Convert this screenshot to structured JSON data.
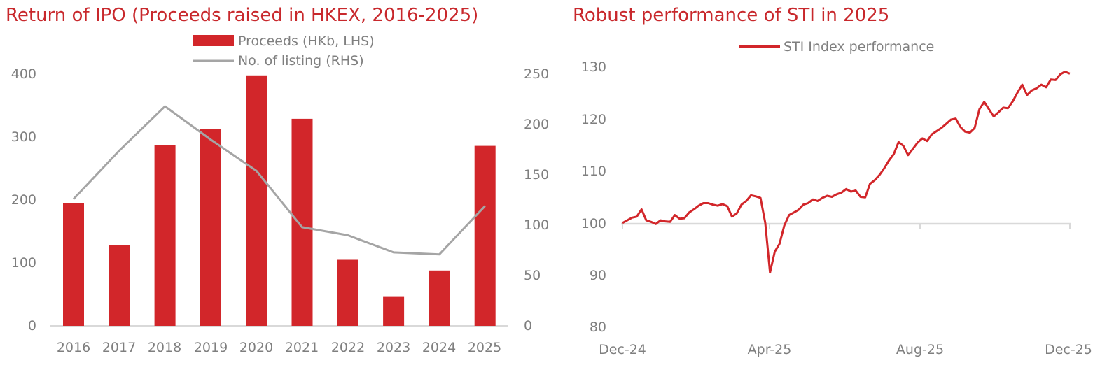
{
  "colors": {
    "accent": "#d2262a",
    "line_gray": "#a5a5a5",
    "text_gray": "#7f7f7f",
    "title_red": "#c8282c",
    "axis": "#d9d9d9"
  },
  "chart_data": [
    {
      "type": "bar",
      "title": "Return of IPO (Proceeds raised in HKEX, 2016-2025)",
      "categories": [
        "2016",
        "2017",
        "2018",
        "2019",
        "2020",
        "2021",
        "2022",
        "2023",
        "2024",
        "2025"
      ],
      "series": [
        {
          "name": "Proceeds (HKb, LHS)",
          "kind": "bar",
          "axis": "left",
          "values": [
            195,
            128,
            287,
            313,
            398,
            329,
            105,
            46,
            88,
            286
          ]
        },
        {
          "name": "No. of listing (RHS)",
          "kind": "line",
          "axis": "right",
          "values": [
            126,
            174,
            218,
            185,
            154,
            98,
            90,
            73,
            71,
            119
          ]
        }
      ],
      "left_axis": {
        "ylim": [
          0,
          400
        ],
        "ticks": [
          "0",
          "100",
          "200",
          "300",
          "400"
        ]
      },
      "right_axis": {
        "ylim": [
          0,
          250
        ],
        "ticks": [
          "0",
          "50",
          "100",
          "150",
          "200",
          "250"
        ]
      },
      "legend_position": "top-center",
      "grid": false
    },
    {
      "type": "line",
      "title": "Robust performance of STI in 2025",
      "series": [
        {
          "name": "STI Index performance",
          "values": [
            100,
            100.5,
            101,
            101.2,
            102.6,
            100.5,
            100.2,
            99.8,
            100.5,
            100.3,
            100.2,
            101.5,
            100.8,
            100.9,
            102,
            102.6,
            103.3,
            103.8,
            103.8,
            103.5,
            103.3,
            103.6,
            103.2,
            101.2,
            101.8,
            103.5,
            104.2,
            105.3,
            105.1,
            104.8,
            100,
            90.5,
            94.5,
            96,
            99.5,
            101.5,
            102,
            102.5,
            103.5,
            103.8,
            104.5,
            104.2,
            104.8,
            105.2,
            105,
            105.5,
            105.8,
            106.5,
            106,
            106.2,
            105,
            104.9,
            107.5,
            108.2,
            109.2,
            110.5,
            112,
            113.2,
            115.5,
            114.8,
            113,
            114.2,
            115.4,
            116.2,
            115.7,
            117,
            117.6,
            118.2,
            119,
            119.8,
            120,
            118.4,
            117.5,
            117.3,
            118.2,
            121.8,
            123.2,
            121.8,
            120.4,
            121.2,
            122.1,
            122,
            123.3,
            125,
            126.5,
            124.5,
            125.4,
            125.8,
            126.5,
            126,
            127.5,
            127.4,
            128.5,
            129,
            128.6
          ]
        }
      ],
      "x_ticks": [
        "Dec-24",
        "Apr-25",
        "Aug-25",
        "Dec-25"
      ],
      "ylim": [
        80,
        130
      ],
      "y_ticks": [
        "80",
        "90",
        "100",
        "110",
        "120",
        "130"
      ],
      "baseline": 100,
      "legend_position": "top-center",
      "grid": false
    }
  ]
}
